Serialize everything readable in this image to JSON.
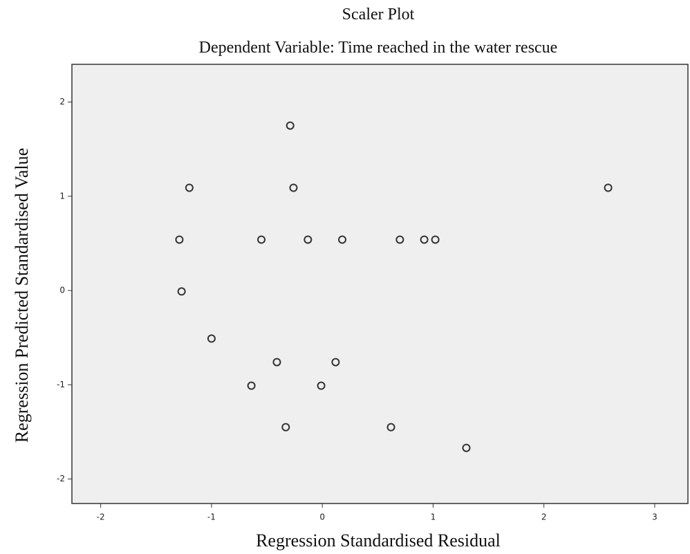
{
  "chart_data": {
    "type": "scatter",
    "title": "Scaler Plot",
    "subtitle": "Dependent Variable: Time reached in the water rescue",
    "x_label": "Regression Standardised Residual",
    "y_label": "Regression Predicted Standardised Value",
    "x": [
      -0.29,
      -1.2,
      -0.26,
      2.58,
      -1.29,
      -0.55,
      -0.13,
      0.18,
      0.7,
      0.92,
      1.02,
      -1.27,
      -1.0,
      -0.41,
      0.12,
      -0.64,
      -0.01,
      -0.33,
      0.62,
      1.3
    ],
    "y": [
      1.75,
      1.09,
      1.09,
      1.09,
      0.54,
      0.54,
      0.54,
      0.54,
      0.54,
      0.54,
      0.54,
      -0.01,
      -0.51,
      -0.76,
      -0.76,
      -1.01,
      -1.01,
      -1.45,
      -1.45,
      -1.67
    ],
    "color": "#333333",
    "xlim": [
      -2.26,
      3.3
    ],
    "ylim": [
      -2.26,
      2.4
    ],
    "xticks": [
      -2,
      -1,
      0,
      1,
      2,
      3
    ],
    "yticks": [
      -2,
      -1,
      0,
      1,
      2
    ],
    "grid": false
  }
}
